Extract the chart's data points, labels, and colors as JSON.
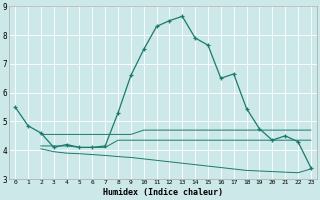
{
  "xlabel": "Humidex (Indice chaleur)",
  "x_labels": [
    "0",
    "1",
    "2",
    "3",
    "4",
    "5",
    "6",
    "7",
    "8",
    "9",
    "10",
    "11",
    "12",
    "13",
    "14",
    "15",
    "16",
    "17",
    "18",
    "19",
    "20",
    "21",
    "22",
    "23"
  ],
  "background_color": "#cce8e8",
  "grid_color": "#ffffff",
  "line_color": "#1a7a6e",
  "ylim": [
    3,
    9
  ],
  "xlim": [
    -0.5,
    23.5
  ],
  "yticks": [
    3,
    4,
    5,
    6,
    7,
    8,
    9
  ],
  "line1_x": [
    0,
    1,
    2,
    3,
    4,
    5,
    6,
    7,
    8,
    9,
    10,
    11,
    12,
    13,
    14,
    15,
    16,
    17,
    18,
    19,
    20,
    21,
    22,
    23
  ],
  "line1_y": [
    5.5,
    4.85,
    4.6,
    4.1,
    4.2,
    4.1,
    4.1,
    4.15,
    5.3,
    6.6,
    7.5,
    8.3,
    8.5,
    8.65,
    7.9,
    7.65,
    6.5,
    6.65,
    5.45,
    4.75,
    4.35,
    4.5,
    4.3,
    3.4
  ],
  "line2_x": [
    2,
    3,
    4,
    5,
    6,
    7,
    8,
    9,
    10,
    11,
    12,
    13,
    14,
    15,
    16,
    17,
    18,
    19,
    20,
    21,
    22,
    23
  ],
  "line2_y": [
    4.55,
    4.55,
    4.55,
    4.55,
    4.55,
    4.55,
    4.55,
    4.55,
    4.7,
    4.7,
    4.7,
    4.7,
    4.7,
    4.7,
    4.7,
    4.7,
    4.7,
    4.7,
    4.7,
    4.7,
    4.7,
    4.7
  ],
  "line3_x": [
    2,
    3,
    4,
    5,
    6,
    7,
    8,
    9,
    10,
    11,
    12,
    13,
    14,
    15,
    16,
    17,
    18,
    19,
    20,
    21,
    22,
    23
  ],
  "line3_y": [
    4.15,
    4.15,
    4.15,
    4.1,
    4.1,
    4.1,
    4.35,
    4.35,
    4.35,
    4.35,
    4.35,
    4.35,
    4.35,
    4.35,
    4.35,
    4.35,
    4.35,
    4.35,
    4.35,
    4.35,
    4.35,
    4.35
  ],
  "line4_x": [
    2,
    3,
    4,
    5,
    6,
    7,
    8,
    9,
    10,
    11,
    12,
    13,
    14,
    15,
    16,
    17,
    18,
    19,
    20,
    21,
    22,
    23
  ],
  "line4_y": [
    4.05,
    3.95,
    3.9,
    3.88,
    3.85,
    3.82,
    3.78,
    3.75,
    3.7,
    3.65,
    3.6,
    3.55,
    3.5,
    3.45,
    3.4,
    3.35,
    3.3,
    3.28,
    3.26,
    3.24,
    3.22,
    3.35
  ]
}
